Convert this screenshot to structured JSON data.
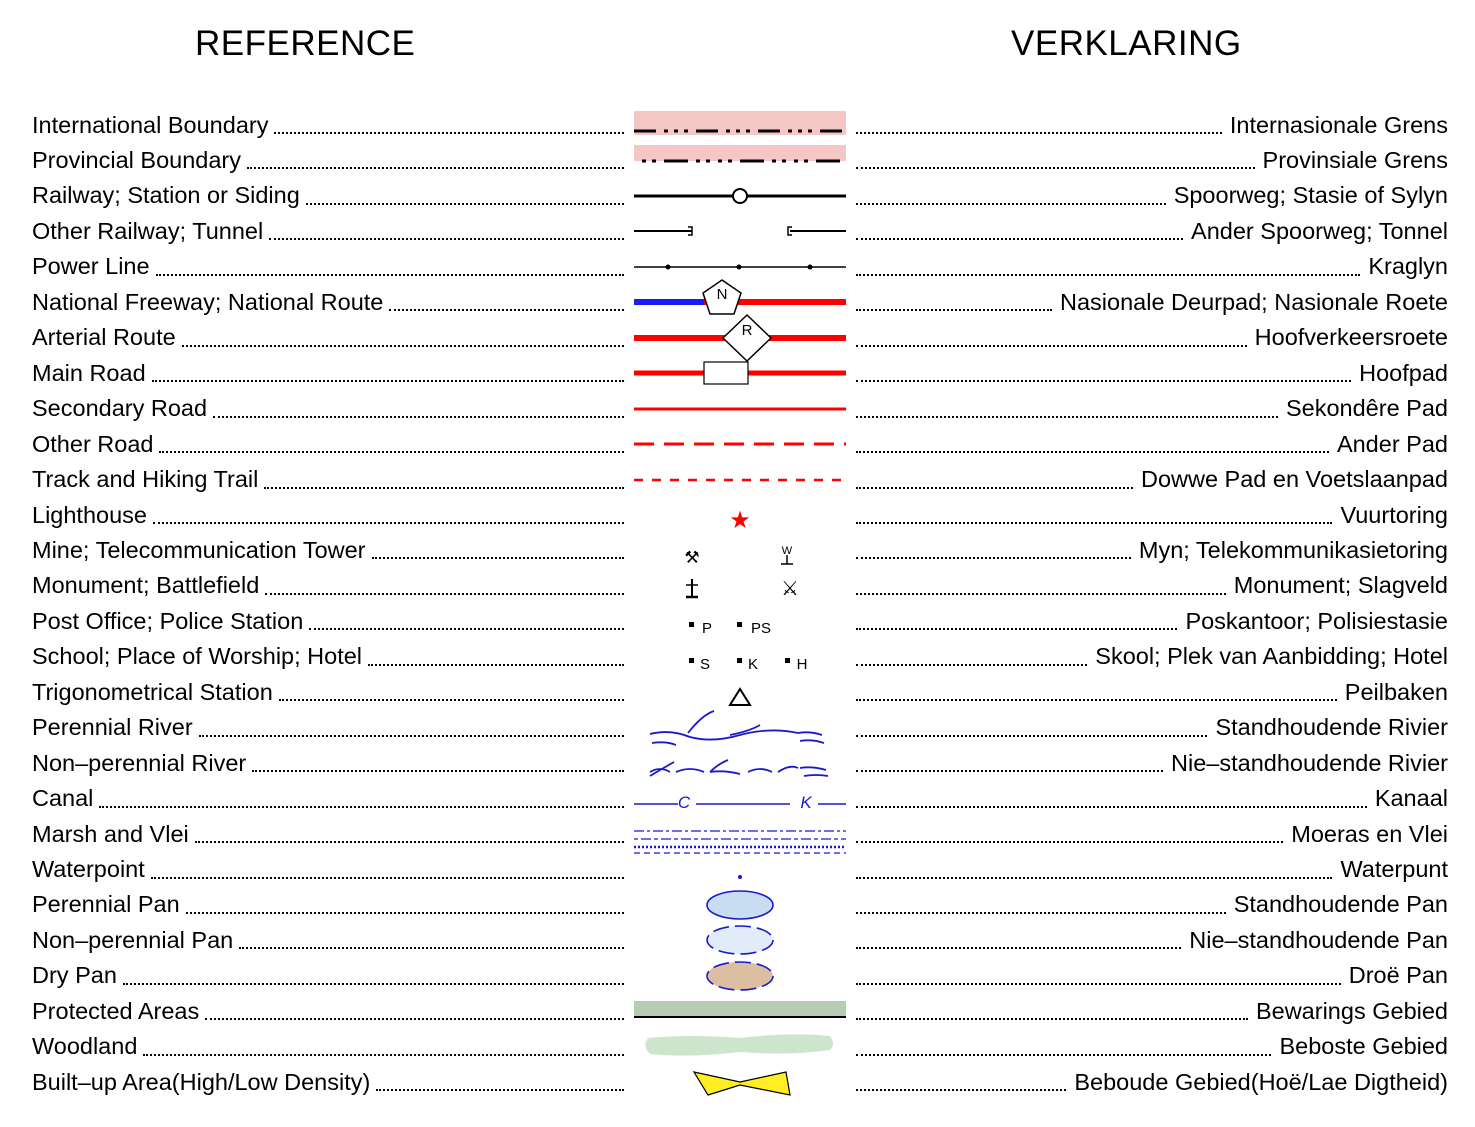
{
  "headings": {
    "reference": "REFERENCE",
    "verklaring": "VERKLARING"
  },
  "colors": {
    "road_red": "#ff0000",
    "freeway_blue": "#1a1aff",
    "water_blue": "#1a1acc",
    "boundary_pink": "#f4c6c6",
    "pan_fill": "#c8dcf2",
    "dry_pan_fill": "#dcbfa0",
    "protected_green": "#b8ccb4",
    "woodland_green": "#cde5cd",
    "builtup_yellow": "#ffee22"
  },
  "rows": [
    {
      "en": "International Boundary",
      "af": "Internasionale Grens",
      "symbol": "international-boundary-symbol"
    },
    {
      "en": "Provincial Boundary",
      "af": "Provinsiale Grens",
      "symbol": "provincial-boundary-symbol"
    },
    {
      "en": "Railway; Station or Siding",
      "af": "Spoorweg; Stasie of Sylyn",
      "symbol": "railway-symbol"
    },
    {
      "en": "Other Railway; Tunnel",
      "af": "Ander Spoorweg; Tonnel",
      "symbol": "other-railway-symbol"
    },
    {
      "en": "Power Line",
      "af": "Kraglyn",
      "symbol": "power-line-symbol"
    },
    {
      "en": "National Freeway; National Route",
      "af": "Nasionale Deurpad; Nasionale Roete",
      "symbol": "national-freeway-symbol"
    },
    {
      "en": "Arterial Route",
      "af": "Hoofverkeersroete",
      "symbol": "arterial-route-symbol"
    },
    {
      "en": "Main Road",
      "af": "Hoofpad",
      "symbol": "main-road-symbol"
    },
    {
      "en": "Secondary Road",
      "af": "Sekondêre Pad",
      "symbol": "secondary-road-symbol"
    },
    {
      "en": "Other Road",
      "af": "Ander Pad",
      "symbol": "other-road-symbol"
    },
    {
      "en": "Track and Hiking Trail",
      "af": "Dowwe Pad en Voetslaanpad",
      "symbol": "track-symbol"
    },
    {
      "en": "Lighthouse",
      "af": "Vuurtoring",
      "symbol": "lighthouse-icon"
    },
    {
      "en": "Mine; Telecommunication Tower",
      "af": "Myn; Telekommunikasietoring",
      "symbol": "mine-tower-icons"
    },
    {
      "en": "Monument; Battlefield",
      "af": "Monument; Slagveld",
      "symbol": "monument-battlefield-icons"
    },
    {
      "en": "Post Office; Police Station",
      "af": "Poskantoor; Polisiestasie",
      "symbol": "post-police-icons"
    },
    {
      "en": "School; Place of Worship; Hotel",
      "af": "Skool; Plek van Aanbidding; Hotel",
      "symbol": "school-worship-hotel-icons"
    },
    {
      "en": "Trigonometrical Station",
      "af": "Peilbaken",
      "symbol": "trig-station-icon"
    },
    {
      "en": "Perennial River",
      "af": "Standhoudende Rivier",
      "symbol": "perennial-river-symbol"
    },
    {
      "en": "Non–perennial River",
      "af": "Nie–standhoudende Rivier",
      "symbol": "non-perennial-river-symbol"
    },
    {
      "en": "Canal",
      "af": "Kanaal",
      "symbol": "canal-symbol"
    },
    {
      "en": "Marsh and Vlei",
      "af": "Moeras en Vlei",
      "symbol": "marsh-symbol"
    },
    {
      "en": "Waterpoint",
      "af": "Waterpunt",
      "symbol": "waterpoint-icon"
    },
    {
      "en": "Perennial Pan",
      "af": "Standhoudende Pan",
      "symbol": "perennial-pan-symbol"
    },
    {
      "en": "Non–perennial Pan",
      "af": "Nie–standhoudende Pan",
      "symbol": "non-perennial-pan-symbol"
    },
    {
      "en": "Dry Pan",
      "af": "Droë Pan",
      "symbol": "dry-pan-symbol"
    },
    {
      "en": "Protected Areas",
      "af": "Bewarings Gebied",
      "symbol": "protected-area-symbol"
    },
    {
      "en": "Woodland",
      "af": "Beboste Gebied",
      "symbol": "woodland-symbol"
    },
    {
      "en": "Built–up Area(High/Low Density)",
      "af": "Beboude Gebied(Hoë/Lae Digtheid)",
      "symbol": "builtup-area-symbol"
    }
  ],
  "symbol_text": {
    "national_route_shield": "N",
    "arterial_route_shield": "R",
    "telecom_tower": "W",
    "post_office": "P",
    "police_station": "PS",
    "school": "S",
    "place_of_worship": "K",
    "hotel": "H",
    "canal_left": "C",
    "canal_right": "K"
  }
}
